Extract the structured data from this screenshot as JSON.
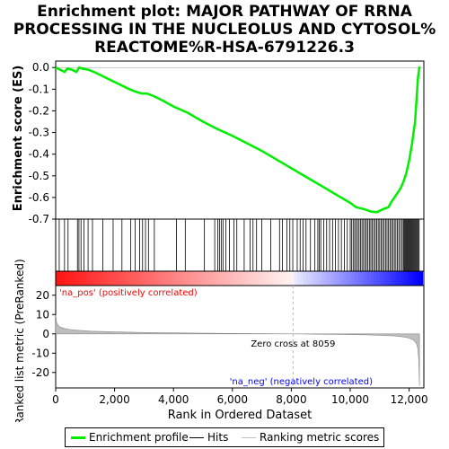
{
  "title_lines": [
    "Enrichment plot: MAJOR PATHWAY OF RRNA",
    "PROCESSING IN THE NUCLEOLUS AND CYTOSOL%",
    "REACTOME%R-HSA-6791226.3"
  ],
  "colors": {
    "enrichment_line": "#00ee00",
    "hits": "#000000",
    "metric_fill": "#bebebe",
    "pos_color": "#ff0000",
    "neg_color": "#0000ff",
    "zero_cross_line": "#bbbbbb"
  },
  "chart_data": {
    "type": "line",
    "xlabel": "Rank in Ordered Dataset",
    "ylabel_top": "Enrichment score (ES)",
    "ylabel_bottom": "Ranked list metric (PreRanked)",
    "x_range": [
      0,
      12500
    ],
    "x_ticks": [
      0,
      2000,
      4000,
      6000,
      8000,
      10000,
      12000
    ],
    "x_tick_labels": [
      "0",
      "2,000",
      "4,000",
      "6,000",
      "8,000",
      "10,000",
      "12,000"
    ],
    "es_ylim": [
      -0.7,
      0.03
    ],
    "es_ticks": [
      0.0,
      -0.1,
      -0.2,
      -0.3,
      -0.4,
      -0.5,
      -0.6,
      -0.7
    ],
    "es_tick_labels": [
      "0.0",
      "-0.1",
      "-0.2",
      "-0.3",
      "-0.4",
      "-0.5",
      "-0.6",
      "-0.7"
    ],
    "metric_ylim": [
      -28,
      25
    ],
    "metric_ticks": [
      20,
      10,
      0,
      -10,
      -20
    ],
    "metric_tick_labels": [
      "20",
      "10",
      "0",
      "-10",
      "-20"
    ],
    "enrichment_profile": {
      "x": [
        0,
        150,
        300,
        400,
        550,
        700,
        800,
        900,
        1100,
        1300,
        1600,
        1900,
        2200,
        2500,
        2800,
        2950,
        3100,
        3300,
        3600,
        4000,
        4500,
        5000,
        5500,
        6000,
        6500,
        7000,
        7500,
        8000,
        8500,
        9000,
        9500,
        10000,
        10200,
        10500,
        10700,
        10900,
        11100,
        11300,
        11400,
        11500,
        11600,
        11700,
        11800,
        11900,
        12000,
        12100,
        12200,
        12250,
        12300,
        12350
      ],
      "y": [
        0.0,
        -0.01,
        -0.02,
        -0.005,
        -0.01,
        -0.02,
        0.0,
        -0.005,
        -0.01,
        -0.02,
        -0.04,
        -0.06,
        -0.08,
        -0.1,
        -0.115,
        -0.12,
        -0.12,
        -0.13,
        -0.15,
        -0.18,
        -0.21,
        -0.25,
        -0.285,
        -0.315,
        -0.35,
        -0.385,
        -0.425,
        -0.465,
        -0.505,
        -0.545,
        -0.585,
        -0.625,
        -0.645,
        -0.655,
        -0.665,
        -0.668,
        -0.655,
        -0.645,
        -0.62,
        -0.6,
        -0.58,
        -0.56,
        -0.53,
        -0.49,
        -0.43,
        -0.35,
        -0.25,
        -0.15,
        -0.05,
        0.005
      ]
    },
    "hits": [
      120,
      300,
      420,
      740,
      790,
      860,
      960,
      1100,
      1250,
      1600,
      1950,
      2250,
      2550,
      2700,
      2850,
      2950,
      3050,
      3150,
      3350,
      4100,
      4400,
      5050,
      5400,
      5500,
      5560,
      5620,
      5680,
      5780,
      5900,
      6050,
      6150,
      6400,
      6600,
      6700,
      6820,
      7000,
      7300,
      7600,
      7700,
      7850,
      7950,
      8050,
      8200,
      8300,
      8400,
      8500,
      8650,
      8800,
      8900,
      8950,
      9000,
      9100,
      9200,
      9300,
      9400,
      9500,
      9600,
      9700,
      9800,
      9900,
      10000,
      10050,
      10100,
      10150,
      10200,
      10250,
      10300,
      10350,
      10400,
      10450,
      10500,
      10550,
      10600,
      10650,
      10700,
      10750,
      10800,
      10850,
      10900,
      10950,
      11000,
      11050,
      11100,
      11150,
      11200,
      11250,
      11300,
      11350,
      11400,
      11450,
      11500,
      11550,
      11600,
      11650,
      11700,
      11750,
      11800,
      11830,
      11860,
      11890,
      11920,
      11950,
      11980,
      12010,
      12040,
      12070,
      12100,
      12130,
      12160,
      12190,
      12220,
      12250,
      12280,
      12310,
      12340
    ],
    "metric": {
      "x": [
        0,
        30,
        80,
        150,
        300,
        500,
        800,
        1200,
        2000,
        3000,
        4000,
        5000,
        6000,
        7000,
        8059,
        9000,
        10000,
        10500,
        11000,
        11500,
        11800,
        12000,
        12150,
        12250,
        12300,
        12330,
        12350
      ],
      "y": [
        10,
        6,
        4.5,
        3.5,
        2.8,
        2.2,
        1.8,
        1.4,
        1.0,
        0.7,
        0.5,
        0.3,
        0.2,
        0.1,
        0.0,
        -0.2,
        -0.4,
        -0.5,
        -0.8,
        -1.1,
        -1.6,
        -2.2,
        -3.2,
        -5,
        -8,
        -14,
        -27
      ]
    },
    "zero_cross": 8059,
    "annotations": {
      "na_pos": "'na_pos' (positively correlated)",
      "na_neg": "'na_neg' (negatively correlated)",
      "zero_cross": "Zero cross at 8059"
    },
    "legend": [
      "Enrichment profile",
      "Hits",
      "Ranking metric scores"
    ],
    "legend_placement": "bottom"
  }
}
